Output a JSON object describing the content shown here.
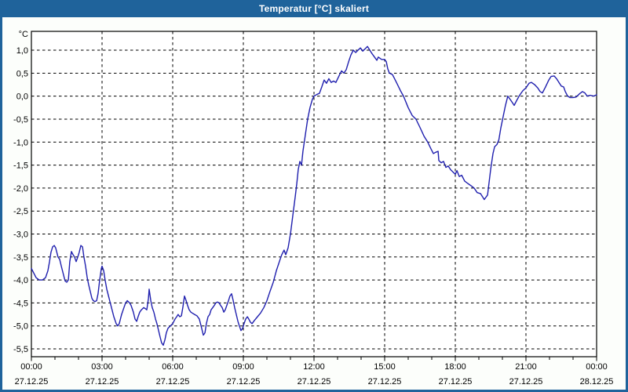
{
  "window": {
    "title": "Temperatur [°C] skaliert"
  },
  "colors": {
    "titlebar": "#1f639b",
    "window_border": "#1f639b",
    "content_background": "#fcfefb",
    "plot_background": "#ffffff",
    "grid": "#000000",
    "axis": "#000000",
    "line": "#1f1fae"
  },
  "chart_data": {
    "type": "line",
    "title": "Temperatur [°C] skaliert",
    "ylabel": "°C",
    "xlabel": "",
    "legend": "none",
    "grid": "dashed",
    "xlim_hours": [
      0,
      24
    ],
    "ylim": [
      -5.67,
      1.41
    ],
    "y_ticks": [
      {
        "value": 1.0,
        "label": "1,0"
      },
      {
        "value": 0.5,
        "label": "0,5"
      },
      {
        "value": 0.0,
        "label": "0,0"
      },
      {
        "value": -0.5,
        "label": "-0,5"
      },
      {
        "value": -1.0,
        "label": "-1,0"
      },
      {
        "value": -1.5,
        "label": "-1,5"
      },
      {
        "value": -2.0,
        "label": "-2,0"
      },
      {
        "value": -2.5,
        "label": "-2,5"
      },
      {
        "value": -3.0,
        "label": "-3,0"
      },
      {
        "value": -3.5,
        "label": "-3,5"
      },
      {
        "value": -4.0,
        "label": "-4,0"
      },
      {
        "value": -4.5,
        "label": "-4,5"
      },
      {
        "value": -5.0,
        "label": "-5,0"
      },
      {
        "value": -5.5,
        "label": "-5,5"
      }
    ],
    "x_ticks": [
      {
        "t": 0,
        "time": "00:00",
        "date": "27.12.25"
      },
      {
        "t": 3,
        "time": "03:00",
        "date": "27.12.25"
      },
      {
        "t": 6,
        "time": "06:00",
        "date": "27.12.25"
      },
      {
        "t": 9,
        "time": "09:00",
        "date": "27.12.25"
      },
      {
        "t": 12,
        "time": "12:00",
        "date": "27.12.25"
      },
      {
        "t": 15,
        "time": "15:00",
        "date": "27.12.25"
      },
      {
        "t": 18,
        "time": "18:00",
        "date": "27.12.25"
      },
      {
        "t": 21,
        "time": "21:00",
        "date": "27.12.25"
      },
      {
        "t": 24,
        "time": "00:00",
        "date": "28.12.25"
      }
    ],
    "minor_tick_every_hours": 1,
    "series": [
      {
        "name": "Temperatur",
        "unit": "°C",
        "color": "#1f1fae",
        "points": [
          [
            0,
            -3.75
          ],
          [
            0.1,
            -3.85
          ],
          [
            0.2,
            -3.95
          ],
          [
            0.33,
            -4.0
          ],
          [
            0.47,
            -4.0
          ],
          [
            0.6,
            -3.95
          ],
          [
            0.7,
            -3.8
          ],
          [
            0.77,
            -3.6
          ],
          [
            0.83,
            -3.4
          ],
          [
            0.9,
            -3.28
          ],
          [
            0.97,
            -3.25
          ],
          [
            1.03,
            -3.3
          ],
          [
            1.13,
            -3.5
          ],
          [
            1.2,
            -3.55
          ],
          [
            1.27,
            -3.7
          ],
          [
            1.37,
            -3.9
          ],
          [
            1.43,
            -4.02
          ],
          [
            1.5,
            -4.05
          ],
          [
            1.57,
            -4.0
          ],
          [
            1.63,
            -3.6
          ],
          [
            1.7,
            -3.38
          ],
          [
            1.77,
            -3.45
          ],
          [
            1.83,
            -3.5
          ],
          [
            1.9,
            -3.6
          ],
          [
            1.97,
            -3.5
          ],
          [
            2.03,
            -3.4
          ],
          [
            2.1,
            -3.25
          ],
          [
            2.17,
            -3.28
          ],
          [
            2.23,
            -3.5
          ],
          [
            2.3,
            -3.7
          ],
          [
            2.37,
            -3.95
          ],
          [
            2.43,
            -4.1
          ],
          [
            2.5,
            -4.25
          ],
          [
            2.57,
            -4.4
          ],
          [
            2.63,
            -4.45
          ],
          [
            2.7,
            -4.47
          ],
          [
            2.77,
            -4.45
          ],
          [
            2.83,
            -4.3
          ],
          [
            2.9,
            -4.0
          ],
          [
            2.97,
            -3.75
          ],
          [
            3.0,
            -3.7
          ],
          [
            3.07,
            -3.8
          ],
          [
            3.13,
            -4.0
          ],
          [
            3.2,
            -4.2
          ],
          [
            3.3,
            -4.4
          ],
          [
            3.4,
            -4.6
          ],
          [
            3.5,
            -4.8
          ],
          [
            3.6,
            -4.95
          ],
          [
            3.67,
            -5.0
          ],
          [
            3.73,
            -4.95
          ],
          [
            3.83,
            -4.75
          ],
          [
            3.93,
            -4.6
          ],
          [
            4.0,
            -4.5
          ],
          [
            4.07,
            -4.45
          ],
          [
            4.17,
            -4.5
          ],
          [
            4.23,
            -4.55
          ],
          [
            4.33,
            -4.7
          ],
          [
            4.4,
            -4.85
          ],
          [
            4.47,
            -4.9
          ],
          [
            4.53,
            -4.8
          ],
          [
            4.6,
            -4.7
          ],
          [
            4.67,
            -4.65
          ],
          [
            4.77,
            -4.6
          ],
          [
            4.83,
            -4.62
          ],
          [
            4.9,
            -4.65
          ],
          [
            4.97,
            -4.4
          ],
          [
            5.0,
            -4.2
          ],
          [
            5.07,
            -4.45
          ],
          [
            5.13,
            -4.6
          ],
          [
            5.2,
            -4.7
          ],
          [
            5.27,
            -4.85
          ],
          [
            5.33,
            -4.95
          ],
          [
            5.4,
            -5.1
          ],
          [
            5.47,
            -5.25
          ],
          [
            5.53,
            -5.37
          ],
          [
            5.6,
            -5.42
          ],
          [
            5.67,
            -5.3
          ],
          [
            5.73,
            -5.15
          ],
          [
            5.8,
            -5.05
          ],
          [
            5.9,
            -5.0
          ],
          [
            6.0,
            -4.95
          ],
          [
            6.1,
            -4.85
          ],
          [
            6.17,
            -4.8
          ],
          [
            6.23,
            -4.75
          ],
          [
            6.3,
            -4.8
          ],
          [
            6.37,
            -4.78
          ],
          [
            6.43,
            -4.6
          ],
          [
            6.5,
            -4.35
          ],
          [
            6.57,
            -4.45
          ],
          [
            6.63,
            -4.55
          ],
          [
            6.7,
            -4.65
          ],
          [
            6.77,
            -4.7
          ],
          [
            6.83,
            -4.72
          ],
          [
            6.93,
            -4.75
          ],
          [
            7.03,
            -4.78
          ],
          [
            7.13,
            -4.85
          ],
          [
            7.23,
            -5.05
          ],
          [
            7.3,
            -5.2
          ],
          [
            7.37,
            -5.15
          ],
          [
            7.43,
            -4.95
          ],
          [
            7.5,
            -4.8
          ],
          [
            7.57,
            -4.75
          ],
          [
            7.63,
            -4.65
          ],
          [
            7.7,
            -4.6
          ],
          [
            7.77,
            -4.55
          ],
          [
            7.83,
            -4.5
          ],
          [
            7.9,
            -4.48
          ],
          [
            7.97,
            -4.5
          ],
          [
            8.03,
            -4.55
          ],
          [
            8.1,
            -4.6
          ],
          [
            8.17,
            -4.7
          ],
          [
            8.23,
            -4.65
          ],
          [
            8.3,
            -4.55
          ],
          [
            8.37,
            -4.45
          ],
          [
            8.43,
            -4.35
          ],
          [
            8.5,
            -4.3
          ],
          [
            8.57,
            -4.45
          ],
          [
            8.63,
            -4.6
          ],
          [
            8.7,
            -4.75
          ],
          [
            8.77,
            -4.9
          ],
          [
            8.83,
            -5.0
          ],
          [
            8.9,
            -5.1
          ],
          [
            8.97,
            -5.05
          ],
          [
            9.03,
            -4.95
          ],
          [
            9.1,
            -4.85
          ],
          [
            9.17,
            -4.8
          ],
          [
            9.23,
            -4.85
          ],
          [
            9.3,
            -4.92
          ],
          [
            9.37,
            -4.95
          ],
          [
            9.47,
            -4.88
          ],
          [
            9.6,
            -4.8
          ],
          [
            9.73,
            -4.72
          ],
          [
            9.87,
            -4.6
          ],
          [
            10.0,
            -4.45
          ],
          [
            10.13,
            -4.25
          ],
          [
            10.27,
            -4.05
          ],
          [
            10.4,
            -3.8
          ],
          [
            10.53,
            -3.6
          ],
          [
            10.63,
            -3.45
          ],
          [
            10.73,
            -3.35
          ],
          [
            10.8,
            -3.45
          ],
          [
            10.9,
            -3.3
          ],
          [
            11.0,
            -3.0
          ],
          [
            11.1,
            -2.6
          ],
          [
            11.2,
            -2.2
          ],
          [
            11.27,
            -1.9
          ],
          [
            11.33,
            -1.6
          ],
          [
            11.4,
            -1.42
          ],
          [
            11.47,
            -1.5
          ],
          [
            11.53,
            -1.2
          ],
          [
            11.63,
            -0.85
          ],
          [
            11.73,
            -0.5
          ],
          [
            11.83,
            -0.25
          ],
          [
            11.93,
            -0.07
          ],
          [
            12.0,
            0.0
          ],
          [
            12.13,
            0.04
          ],
          [
            12.23,
            0.06
          ],
          [
            12.33,
            0.2
          ],
          [
            12.43,
            0.35
          ],
          [
            12.53,
            0.28
          ],
          [
            12.63,
            0.38
          ],
          [
            12.73,
            0.3
          ],
          [
            12.83,
            0.33
          ],
          [
            12.93,
            0.3
          ],
          [
            13.07,
            0.45
          ],
          [
            13.17,
            0.55
          ],
          [
            13.27,
            0.5
          ],
          [
            13.37,
            0.58
          ],
          [
            13.47,
            0.75
          ],
          [
            13.57,
            0.9
          ],
          [
            13.67,
            1.0
          ],
          [
            13.77,
            0.95
          ],
          [
            13.87,
            1.0
          ],
          [
            13.97,
            1.05
          ],
          [
            14.07,
            0.98
          ],
          [
            14.17,
            1.03
          ],
          [
            14.27,
            1.08
          ],
          [
            14.37,
            1.0
          ],
          [
            14.47,
            0.92
          ],
          [
            14.57,
            0.85
          ],
          [
            14.67,
            0.78
          ],
          [
            14.73,
            0.85
          ],
          [
            14.87,
            0.8
          ],
          [
            15.0,
            0.8
          ],
          [
            15.07,
            0.75
          ],
          [
            15.13,
            0.6
          ],
          [
            15.2,
            0.5
          ],
          [
            15.33,
            0.47
          ],
          [
            15.5,
            0.3
          ],
          [
            15.67,
            0.12
          ],
          [
            15.8,
            0.0
          ],
          [
            16.0,
            -0.25
          ],
          [
            16.17,
            -0.42
          ],
          [
            16.33,
            -0.5
          ],
          [
            16.5,
            -0.68
          ],
          [
            16.67,
            -0.87
          ],
          [
            16.83,
            -1.0
          ],
          [
            16.97,
            -1.15
          ],
          [
            17.07,
            -1.25
          ],
          [
            17.17,
            -1.22
          ],
          [
            17.27,
            -1.2
          ],
          [
            17.3,
            -1.4
          ],
          [
            17.4,
            -1.45
          ],
          [
            17.5,
            -1.42
          ],
          [
            17.6,
            -1.55
          ],
          [
            17.7,
            -1.52
          ],
          [
            17.8,
            -1.6
          ],
          [
            17.9,
            -1.65
          ],
          [
            18.0,
            -1.7
          ],
          [
            18.07,
            -1.62
          ],
          [
            18.17,
            -1.75
          ],
          [
            18.27,
            -1.72
          ],
          [
            18.4,
            -1.85
          ],
          [
            18.53,
            -1.9
          ],
          [
            18.67,
            -1.95
          ],
          [
            18.8,
            -2.0
          ],
          [
            18.93,
            -2.1
          ],
          [
            19.07,
            -2.12
          ],
          [
            19.17,
            -2.2
          ],
          [
            19.23,
            -2.25
          ],
          [
            19.3,
            -2.2
          ],
          [
            19.37,
            -2.15
          ],
          [
            19.5,
            -1.6
          ],
          [
            19.6,
            -1.25
          ],
          [
            19.67,
            -1.1
          ],
          [
            19.77,
            -1.05
          ],
          [
            19.85,
            -0.95
          ],
          [
            19.93,
            -0.7
          ],
          [
            20.03,
            -0.45
          ],
          [
            20.13,
            -0.2
          ],
          [
            20.23,
            0.0
          ],
          [
            20.37,
            -0.1
          ],
          [
            20.5,
            -0.2
          ],
          [
            20.6,
            -0.1
          ],
          [
            20.73,
            0.02
          ],
          [
            20.87,
            0.12
          ],
          [
            21.0,
            0.18
          ],
          [
            21.13,
            0.28
          ],
          [
            21.23,
            0.3
          ],
          [
            21.37,
            0.25
          ],
          [
            21.5,
            0.18
          ],
          [
            21.6,
            0.1
          ],
          [
            21.7,
            0.07
          ],
          [
            21.83,
            0.2
          ],
          [
            21.97,
            0.35
          ],
          [
            22.07,
            0.43
          ],
          [
            22.2,
            0.44
          ],
          [
            22.3,
            0.38
          ],
          [
            22.4,
            0.3
          ],
          [
            22.5,
            0.22
          ],
          [
            22.6,
            0.2
          ],
          [
            22.67,
            0.1
          ],
          [
            22.77,
            0.0
          ],
          [
            22.87,
            -0.03
          ],
          [
            23.0,
            -0.03
          ],
          [
            23.13,
            -0.02
          ],
          [
            23.27,
            0.05
          ],
          [
            23.4,
            0.1
          ],
          [
            23.5,
            0.07
          ],
          [
            23.6,
            0.0
          ],
          [
            23.73,
            0.02
          ],
          [
            23.87,
            0.0
          ],
          [
            24.0,
            0.03
          ]
        ]
      }
    ]
  }
}
